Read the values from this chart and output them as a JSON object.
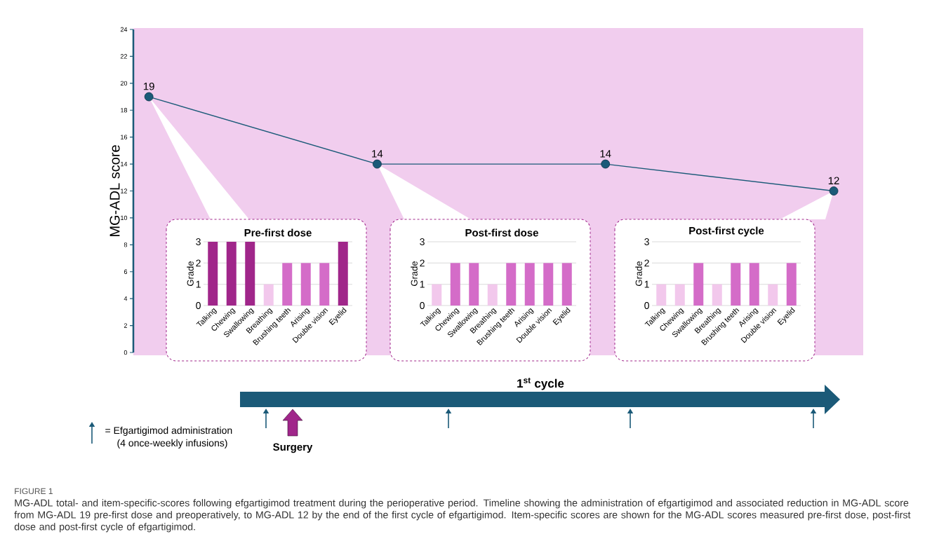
{
  "chart_data": [
    {
      "type": "line",
      "ylabel": "MG-ADL score",
      "categories": [
        null,
        null,
        null,
        null
      ],
      "values": [
        19,
        14,
        14,
        12
      ],
      "color": "#1b5a78",
      "marker": "circle",
      "ylim": [
        0,
        24
      ],
      "yticks": [
        0,
        2,
        4,
        6,
        8,
        10,
        12,
        14,
        16,
        18,
        20,
        22,
        24
      ],
      "data_labels": true,
      "annotations": [
        "1$^{st}$ cycle",
        "= Efgartigimod administration",
        "(4 once-weekly infusions)",
        "Surgery",
        "FIGURE 1",
        "MG-ADL total- and item-specific-scores following efgartigimod treatment during the perioperative period. Timeline showing the administration of efgartigimod and associated reduction in MG-ADL score from MG-ADL 19 pre-first dose and preoperatively, to MG-ADL 12 by the end of the first cycle of efgartigimod. Item-specific scores are shown for the MG-ADL scores measured pre-first dose, post-first dose and post-first cycle of efgartigimod."
      ]
    },
    {
      "type": "bar",
      "title": "Pre-first dose",
      "ylabel": "Grade",
      "categories": [
        "Talking",
        "Chewing",
        "Swallowing",
        "Breathing",
        "Brushing teeth",
        "Arising",
        "Double vision",
        "Eyelid"
      ],
      "values": [
        3,
        3,
        3,
        1,
        2,
        2,
        2,
        3
      ],
      "colors": [
        "#a0268a",
        "#a0268a",
        "#a0268a",
        "#f2c8ec",
        "#d46cc8",
        "#d46cc8",
        "#d46cc8",
        "#a0268a"
      ],
      "ylim": [
        0,
        3
      ],
      "yticks": [
        0,
        1,
        2,
        3
      ],
      "grid": "y"
    },
    {
      "type": "bar",
      "title": "Post-first dose",
      "ylabel": "Grade",
      "categories": [
        "Talking",
        "Chewing",
        "Swallowing",
        "Breathing",
        "Brushing teeth",
        "Arising",
        "Double vision",
        "Eyelid"
      ],
      "values": [
        1,
        2,
        2,
        1,
        2,
        2,
        2,
        2
      ],
      "colors": [
        "#f2c8ec",
        "#d46cc8",
        "#d46cc8",
        "#f2c8ec",
        "#d46cc8",
        "#d46cc8",
        "#d46cc8",
        "#d46cc8"
      ],
      "ylim": [
        0,
        3
      ],
      "yticks": [
        0,
        1,
        2,
        3
      ],
      "grid": "y"
    },
    {
      "type": "bar",
      "title": "Post-first cycle",
      "ylabel": "Grade",
      "categories": [
        "Talking",
        "Chewing",
        "Swallowing",
        "Breathing",
        "Brushing teeth",
        "Arising",
        "Double vision",
        "Eyelid"
      ],
      "values": [
        1,
        1,
        2,
        1,
        2,
        2,
        1,
        2
      ],
      "colors": [
        "#f2c8ec",
        "#f2c8ec",
        "#d46cc8",
        "#f2c8ec",
        "#d46cc8",
        "#d46cc8",
        "#f2c8ec",
        "#d46cc8"
      ],
      "ylim": [
        0,
        3
      ],
      "yticks": [
        0,
        1,
        2,
        3
      ],
      "grid": "y"
    }
  ]
}
